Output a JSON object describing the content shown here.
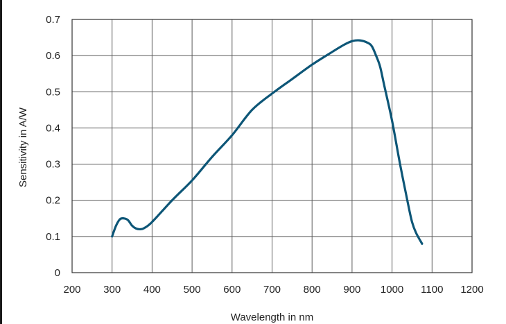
{
  "chart_data": {
    "type": "line",
    "title": "",
    "xlabel": "Wavelength in nm",
    "ylabel": "Sensitivity in A/W",
    "xlim": [
      200,
      1200
    ],
    "ylim": [
      0,
      0.7
    ],
    "xticks": [
      "200",
      "300",
      "400",
      "500",
      "600",
      "700",
      "800",
      "900",
      "1000",
      "1100",
      "1200"
    ],
    "yticks": [
      "0",
      "0.1",
      "0.2",
      "0.3",
      "0.4",
      "0.5",
      "0.6",
      "0.7"
    ],
    "grid": true,
    "legend": "none",
    "series": [
      {
        "color": "#0d5677",
        "x": [
          300,
          310,
          320,
          330,
          340,
          350,
          360,
          370,
          380,
          400,
          450,
          500,
          550,
          600,
          650,
          700,
          750,
          800,
          850,
          880,
          900,
          920,
          940,
          950,
          960,
          970,
          980,
          1000,
          1020,
          1040,
          1050,
          1060,
          1075
        ],
        "y": [
          0.1,
          0.13,
          0.148,
          0.15,
          0.145,
          0.13,
          0.122,
          0.12,
          0.123,
          0.14,
          0.2,
          0.255,
          0.32,
          0.38,
          0.45,
          0.495,
          0.535,
          0.575,
          0.61,
          0.63,
          0.64,
          0.642,
          0.635,
          0.625,
          0.6,
          0.57,
          0.52,
          0.42,
          0.3,
          0.19,
          0.14,
          0.11,
          0.08
        ]
      }
    ]
  }
}
